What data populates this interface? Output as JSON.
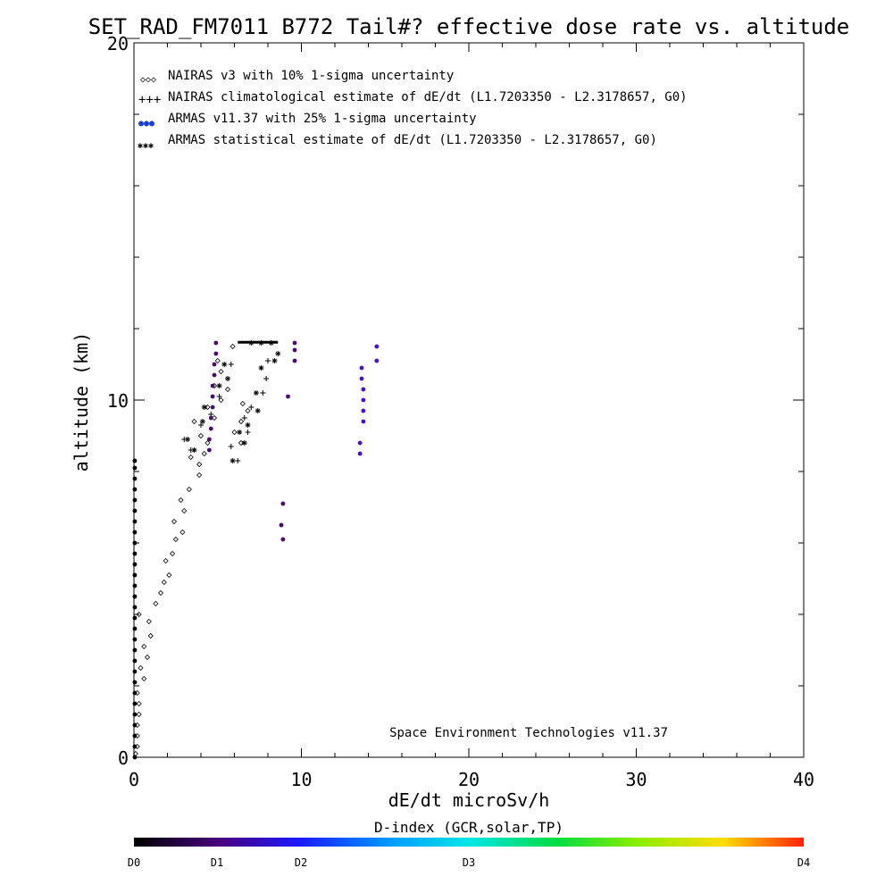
{
  "chart_data": {
    "type": "scatter",
    "title": "SET_RAD_FM7011  B772 Tail#? effective dose rate vs. altitude",
    "xlabel": "dE/dt microSv/h",
    "ylabel": "altitude (km)",
    "xlim": [
      0,
      40
    ],
    "ylim": [
      0,
      20
    ],
    "x_ticks": [
      "0",
      "10",
      "20",
      "30",
      "40"
    ],
    "y_ticks": [
      "0",
      "10",
      "20"
    ],
    "grid": false,
    "legend_position": "top-left",
    "legend": [
      {
        "symbol": "◇◇◇",
        "label": "NAIRAS v3 with 10% 1-sigma uncertainty"
      },
      {
        "symbol": "+++",
        "label": "NAIRAS climatological estimate of dE/dt (L1.7203350 - L2.3178657, G0)"
      },
      {
        "symbol": "●●●",
        "label": "ARMAS v11.37 with 25% 1-sigma uncertainty"
      },
      {
        "symbol": "✱✱✱",
        "label": "ARMAS statistical estimate of dE/dt (L1.7203350 - L2.3178657, G0)"
      }
    ],
    "annotation": "Space Environment Technologies v11.37",
    "colorbar": {
      "title": "D-index (GCR,solar,TP)",
      "labels": [
        "D0",
        "D1",
        "D2",
        "D3",
        "D4"
      ]
    },
    "series": [
      {
        "name": "NAIRAS v3 with 10% 1-sigma uncertainty",
        "marker": "diamond",
        "points": [
          [
            0.1,
            0.1
          ],
          [
            0.2,
            0.3
          ],
          [
            0.2,
            0.6
          ],
          [
            0.2,
            0.9
          ],
          [
            0.3,
            1.2
          ],
          [
            0.3,
            1.5
          ],
          [
            0.2,
            1.8
          ],
          [
            0.6,
            2.2
          ],
          [
            0.4,
            2.5
          ],
          [
            0.8,
            2.8
          ],
          [
            0.6,
            3.1
          ],
          [
            1.0,
            3.4
          ],
          [
            0.9,
            3.8
          ],
          [
            0.3,
            4.0
          ],
          [
            1.3,
            4.3
          ],
          [
            1.6,
            4.6
          ],
          [
            1.8,
            4.9
          ],
          [
            2.1,
            5.1
          ],
          [
            1.9,
            5.5
          ],
          [
            2.3,
            5.7
          ],
          [
            2.5,
            6.1
          ],
          [
            2.9,
            6.3
          ],
          [
            2.4,
            6.6
          ],
          [
            3.0,
            6.9
          ],
          [
            2.8,
            7.2
          ],
          [
            3.3,
            7.5
          ],
          [
            3.9,
            7.9
          ],
          [
            3.9,
            8.2
          ],
          [
            3.4,
            8.4
          ],
          [
            4.2,
            8.5
          ],
          [
            4.4,
            8.8
          ],
          [
            4.0,
            9.0
          ],
          [
            3.6,
            9.4
          ],
          [
            4.8,
            9.5
          ],
          [
            4.4,
            9.8
          ],
          [
            5.2,
            10.0
          ],
          [
            4.8,
            10.4
          ],
          [
            5.2,
            10.8
          ],
          [
            5.0,
            11.1
          ],
          [
            5.9,
            11.5
          ],
          [
            6.4,
            8.8
          ],
          [
            6.0,
            9.1
          ],
          [
            6.4,
            9.4
          ],
          [
            6.8,
            9.7
          ],
          [
            6.5,
            9.9
          ],
          [
            5.6,
            10.3
          ]
        ]
      },
      {
        "name": "NAIRAS climatological estimate of dE/dt (L1.7203350 - L2.3178657, G0)",
        "marker": "plus",
        "points": [
          [
            3.4,
            8.6
          ],
          [
            3.0,
            8.9
          ],
          [
            4.0,
            9.3
          ],
          [
            4.6,
            9.6
          ],
          [
            5.1,
            10.1
          ],
          [
            5.6,
            10.6
          ],
          [
            5.8,
            11.0
          ],
          [
            6.2,
            8.3
          ],
          [
            5.8,
            8.7
          ],
          [
            6.8,
            9.1
          ],
          [
            6.6,
            9.5
          ],
          [
            7.0,
            9.8
          ],
          [
            7.7,
            10.2
          ],
          [
            7.9,
            10.6
          ],
          [
            8.0,
            11.1
          ]
        ]
      },
      {
        "name": "ARMAS v11.37 with 25% 1-sigma uncertainty",
        "marker": "dot",
        "points": [
          [
            0.05,
            0.0
          ],
          [
            0.05,
            0.3
          ],
          [
            0.05,
            0.6
          ],
          [
            0.05,
            0.9
          ],
          [
            0.05,
            1.2
          ],
          [
            0.05,
            1.5
          ],
          [
            0.05,
            1.8
          ],
          [
            0.05,
            2.1
          ],
          [
            0.05,
            2.4
          ],
          [
            0.05,
            2.7
          ],
          [
            0.05,
            3.0
          ],
          [
            0.05,
            3.3
          ],
          [
            0.05,
            3.6
          ],
          [
            0.05,
            3.9
          ],
          [
            0.05,
            4.2
          ],
          [
            0.05,
            4.5
          ],
          [
            0.05,
            4.8
          ],
          [
            0.05,
            5.1
          ],
          [
            0.05,
            5.4
          ],
          [
            0.05,
            5.7
          ],
          [
            0.05,
            6.0
          ],
          [
            0.05,
            6.3
          ],
          [
            0.05,
            6.6
          ],
          [
            0.05,
            6.9
          ],
          [
            0.05,
            7.2
          ],
          [
            0.05,
            7.5
          ],
          [
            0.05,
            7.8
          ],
          [
            0.05,
            8.1
          ],
          [
            0.05,
            8.3
          ],
          [
            4.5,
            8.6
          ],
          [
            4.5,
            8.9
          ],
          [
            4.6,
            9.2
          ],
          [
            4.6,
            9.5
          ],
          [
            4.7,
            9.8
          ],
          [
            4.7,
            10.1
          ],
          [
            4.7,
            10.4
          ],
          [
            4.8,
            10.7
          ],
          [
            4.8,
            11.0
          ],
          [
            4.9,
            11.3
          ],
          [
            4.9,
            11.6
          ],
          [
            8.9,
            6.1
          ],
          [
            8.8,
            6.5
          ],
          [
            8.9,
            7.1
          ],
          [
            9.2,
            10.1
          ],
          [
            9.6,
            11.1
          ],
          [
            9.6,
            11.4
          ],
          [
            9.6,
            11.6
          ],
          [
            13.5,
            8.5
          ],
          [
            13.5,
            8.8
          ],
          [
            13.7,
            9.4
          ],
          [
            13.7,
            9.7
          ],
          [
            13.7,
            10.0
          ],
          [
            13.7,
            10.3
          ],
          [
            13.6,
            10.6
          ],
          [
            13.6,
            10.9
          ],
          [
            14.5,
            11.1
          ],
          [
            14.5,
            11.5
          ]
        ]
      },
      {
        "name": "ARMAS statistical estimate of dE/dt (L1.7203350 - L2.3178657, G0)",
        "marker": "asterisk",
        "points": [
          [
            3.2,
            8.9
          ],
          [
            3.6,
            8.6
          ],
          [
            4.1,
            9.4
          ],
          [
            4.2,
            9.8
          ],
          [
            5.1,
            10.4
          ],
          [
            5.6,
            10.6
          ],
          [
            5.4,
            11.0
          ],
          [
            5.9,
            8.3
          ],
          [
            6.6,
            8.8
          ],
          [
            6.3,
            9.1
          ],
          [
            6.8,
            9.3
          ],
          [
            7.4,
            9.7
          ],
          [
            7.3,
            10.2
          ],
          [
            7.6,
            10.9
          ],
          [
            8.4,
            11.1
          ],
          [
            8.6,
            11.3
          ],
          [
            7.0,
            11.6
          ],
          [
            7.6,
            11.6
          ],
          [
            8.2,
            11.6
          ]
        ]
      }
    ]
  }
}
